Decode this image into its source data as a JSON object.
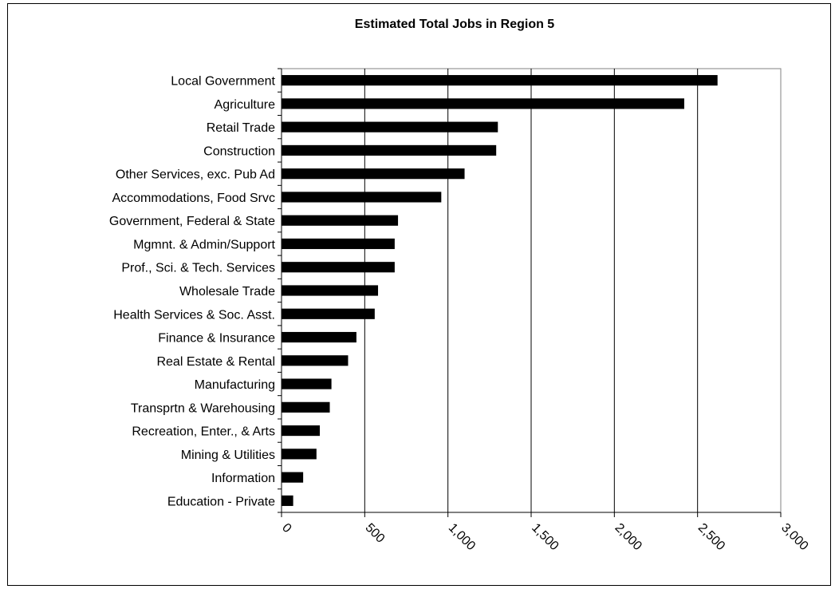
{
  "chart_data": {
    "type": "bar",
    "orientation": "horizontal",
    "title": "Estimated Total Jobs in Region 5",
    "xlabel": "",
    "ylabel": "",
    "xlim": [
      0,
      3000
    ],
    "x_ticks": [
      "0",
      "500",
      "1,000",
      "1,500",
      "2,000",
      "2,500",
      "3,000"
    ],
    "grid": "vertical",
    "bar_color": "#000000",
    "categories": [
      "Local Government",
      "Agriculture",
      "Retail Trade",
      "Construction",
      "Other Services, exc. Pub Ad",
      "Accommodations, Food Srvc",
      "Government, Federal & State",
      "Mgmnt. & Admin/Support",
      "Prof., Sci. & Tech. Services",
      "Wholesale Trade",
      "Health Services & Soc. Asst.",
      "Finance & Insurance",
      "Real Estate & Rental",
      "Manufacturing",
      "Transprtn & Warehousing",
      "Recreation, Enter.,  & Arts",
      "Mining & Utilities",
      "Information",
      "Education - Private"
    ],
    "values": [
      2620,
      2420,
      1300,
      1290,
      1100,
      960,
      700,
      680,
      680,
      580,
      560,
      450,
      400,
      300,
      290,
      230,
      210,
      130,
      70
    ]
  }
}
